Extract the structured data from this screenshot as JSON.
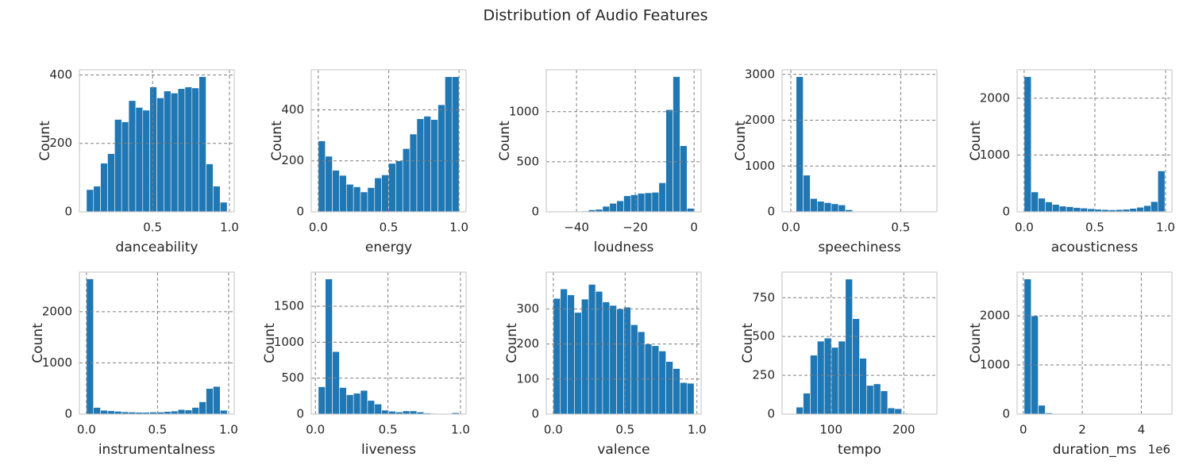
{
  "title": "Distribution of Audio Features",
  "chart_data": [
    {
      "type": "histogram",
      "xlabel": "danceability",
      "ylabel": "Count",
      "color": "#1f77b4",
      "grid": true,
      "bins": [
        0.07,
        0.1158,
        0.1615,
        0.2073,
        0.253,
        0.2988,
        0.3445,
        0.3903,
        0.436,
        0.4818,
        0.5275,
        0.5733,
        0.619,
        0.6648,
        0.7105,
        0.7563,
        0.802,
        0.8478,
        0.8935,
        0.9393,
        0.985
      ],
      "values": [
        65,
        75,
        142,
        170,
        270,
        263,
        325,
        305,
        297,
        365,
        333,
        353,
        347,
        360,
        365,
        362,
        395,
        140,
        75,
        28
      ],
      "xlim": [
        0.024,
        1.031
      ],
      "xticks": [
        0.5,
        {
          "value": 1,
          "label": "1.0"
        }
      ],
      "ylim": [
        0,
        415
      ],
      "yticks": [
        0,
        200,
        400
      ]
    },
    {
      "type": "histogram",
      "xlabel": "energy",
      "ylabel": "Count",
      "color": "#1f77b4",
      "grid": true,
      "bins": [
        0,
        0.05,
        0.1,
        0.15,
        0.2,
        0.25,
        0.3,
        0.35,
        0.4,
        0.45,
        0.5,
        0.55,
        0.6,
        0.65,
        0.7,
        0.75,
        0.8,
        0.85,
        0.9,
        0.95,
        1.0
      ],
      "values": [
        278,
        218,
        163,
        143,
        108,
        98,
        78,
        95,
        133,
        145,
        190,
        200,
        248,
        305,
        365,
        375,
        362,
        420,
        530,
        530
      ],
      "xlim": [
        -0.05,
        1.05
      ],
      "xticks": [
        {
          "value": 0,
          "label": "0.0"
        },
        0.5,
        {
          "value": 1,
          "label": "1.0"
        }
      ],
      "ylim": [
        0,
        557
      ],
      "yticks": [
        0,
        200,
        400
      ]
    },
    {
      "type": "histogram",
      "xlabel": "loudness",
      "ylabel": "Count",
      "color": "#1f77b4",
      "grid": true,
      "bins": [
        -47.9,
        -45.505,
        -43.11,
        -40.715,
        -38.32,
        -35.925,
        -33.53,
        -31.135,
        -28.74,
        -26.345,
        -23.95,
        -21.555,
        -19.16,
        -16.765,
        -14.37,
        -11.975,
        -9.58,
        -7.185,
        -4.79,
        -2.395,
        0
      ],
      "values": [
        1,
        1,
        2,
        3,
        8,
        20,
        25,
        55,
        85,
        110,
        160,
        170,
        185,
        190,
        195,
        290,
        1020,
        1350,
        660,
        35
      ],
      "xlim": [
        -50.295,
        2.395
      ],
      "xticks": [
        {
          "value": -40,
          "label": "−40"
        },
        {
          "value": -20,
          "label": "−20"
        },
        0
      ],
      "ylim": [
        0,
        1418
      ],
      "yticks": [
        0,
        500,
        1000
      ]
    },
    {
      "type": "histogram",
      "xlabel": "speechiness",
      "ylabel": "Count",
      "color": "#1f77b4",
      "grid": true,
      "bins": [
        0.024,
        0.0561,
        0.0881,
        0.1202,
        0.1522,
        0.1843,
        0.2163,
        0.2484,
        0.2804,
        0.3125,
        0.3445,
        0.3766,
        0.4086,
        0.4407,
        0.4727,
        0.5048,
        0.5368,
        0.5689,
        0.6009,
        0.633,
        0.665
      ],
      "values": [
        2950,
        800,
        290,
        230,
        200,
        175,
        150,
        45,
        12,
        6,
        4,
        3,
        2,
        2,
        1,
        1,
        1,
        1,
        0,
        1
      ],
      "xlim": [
        -0.04,
        0.665
      ],
      "xticks": [
        {
          "value": 0,
          "label": "0.0"
        },
        0.5
      ],
      "ylim": [
        0,
        3100
      ],
      "yticks": [
        0,
        1000,
        2000,
        3000
      ]
    },
    {
      "type": "histogram",
      "xlabel": "acousticness",
      "ylabel": "Count",
      "color": "#1f77b4",
      "grid": true,
      "bins": [
        0,
        0.0498,
        0.0995,
        0.1493,
        0.199,
        0.2488,
        0.2985,
        0.3483,
        0.398,
        0.4478,
        0.4975,
        0.5473,
        0.597,
        0.6468,
        0.6965,
        0.7463,
        0.796,
        0.8458,
        0.8955,
        0.9453,
        0.995
      ],
      "values": [
        2380,
        350,
        240,
        175,
        130,
        100,
        90,
        75,
        65,
        55,
        45,
        40,
        35,
        40,
        45,
        60,
        80,
        110,
        180,
        720
      ],
      "xlim": [
        -0.05,
        1.045
      ],
      "xticks": [
        {
          "value": 0,
          "label": "0.0"
        },
        0.5,
        {
          "value": 1,
          "label": "1.0"
        }
      ],
      "ylim": [
        0,
        2500
      ],
      "yticks": [
        0,
        1000,
        2000
      ]
    },
    {
      "type": "histogram",
      "xlabel": "instrumentalness",
      "ylabel": "Count",
      "color": "#1f77b4",
      "grid": true,
      "bins": [
        0,
        0.0495,
        0.099,
        0.1485,
        0.198,
        0.2475,
        0.297,
        0.3465,
        0.396,
        0.4455,
        0.495,
        0.5445,
        0.594,
        0.6435,
        0.693,
        0.7425,
        0.792,
        0.8415,
        0.891,
        0.9405,
        0.99
      ],
      "values": [
        2640,
        130,
        75,
        65,
        55,
        45,
        40,
        35,
        35,
        40,
        40,
        50,
        60,
        90,
        80,
        130,
        240,
        500,
        540,
        75
      ],
      "xlim": [
        -0.0495,
        1.0395
      ],
      "xticks": [
        {
          "value": 0,
          "label": "0.0"
        },
        0.5,
        {
          "value": 1,
          "label": "1.0"
        }
      ],
      "ylim": [
        0,
        2772
      ],
      "yticks": [
        0,
        1000,
        2000
      ]
    },
    {
      "type": "histogram",
      "xlabel": "liveness",
      "ylabel": "Count",
      "color": "#1f77b4",
      "grid": true,
      "bins": [
        0.02,
        0.0685,
        0.117,
        0.1655,
        0.214,
        0.2625,
        0.311,
        0.3595,
        0.408,
        0.4565,
        0.505,
        0.5535,
        0.602,
        0.6505,
        0.699,
        0.7475,
        0.796,
        0.8445,
        0.893,
        0.9415,
        0.99
      ],
      "values": [
        380,
        1880,
        870,
        370,
        270,
        290,
        330,
        190,
        140,
        55,
        40,
        30,
        45,
        45,
        30,
        15,
        10,
        8,
        5,
        20
      ],
      "xlim": [
        -0.0285,
        1.0385
      ],
      "xticks": [
        {
          "value": 0,
          "label": "0.0"
        },
        0.5,
        {
          "value": 1,
          "label": "1.0"
        }
      ],
      "ylim": [
        0,
        1975
      ],
      "yticks": [
        0,
        500,
        1000,
        1500
      ]
    },
    {
      "type": "histogram",
      "xlabel": "valence",
      "ylabel": "Count",
      "color": "#1f77b4",
      "grid": true,
      "bins": [
        0,
        0.049,
        0.098,
        0.147,
        0.196,
        0.245,
        0.294,
        0.343,
        0.392,
        0.441,
        0.49,
        0.539,
        0.588,
        0.637,
        0.686,
        0.735,
        0.784,
        0.833,
        0.882,
        0.931,
        0.98
      ],
      "values": [
        330,
        357,
        340,
        290,
        328,
        370,
        350,
        320,
        310,
        300,
        305,
        255,
        235,
        200,
        195,
        180,
        150,
        130,
        90,
        88
      ],
      "xlim": [
        -0.049,
        1.029
      ],
      "xticks": [
        {
          "value": 0,
          "label": "0.0"
        },
        0.5,
        {
          "value": 1,
          "label": "1.0"
        }
      ],
      "ylim": [
        0,
        405
      ],
      "yticks": [
        0,
        100,
        200,
        300
      ]
    },
    {
      "type": "histogram",
      "xlabel": "tempo",
      "ylabel": "Count",
      "color": "#1f77b4",
      "grid": true,
      "bins": [
        42.3,
        51.98,
        61.66,
        71.34,
        81.02,
        90.7,
        100.38,
        110.06,
        119.74,
        129.42,
        139.1,
        148.78,
        158.46,
        168.14,
        177.82,
        187.5,
        197.18,
        206.86,
        216.54,
        226.22,
        235.9
      ],
      "values": [
        2,
        45,
        135,
        380,
        470,
        490,
        430,
        470,
        870,
        615,
        360,
        185,
        195,
        150,
        40,
        35,
        5,
        2,
        1,
        1
      ],
      "xlim": [
        32.62,
        245.58
      ],
      "xticks": [
        100,
        200
      ],
      "ylim": [
        0,
        915
      ],
      "yticks": [
        0,
        250,
        500,
        750
      ]
    },
    {
      "type": "histogram",
      "xlabel": "duration_ms",
      "ylabel": "Count",
      "color": "#1f77b4",
      "grid": true,
      "x_offset_label": "1e6",
      "bins": [
        30000,
        268500,
        507000,
        745500,
        984000,
        1222500,
        1461000,
        1699500,
        1938000,
        2176500,
        2415000,
        2653500,
        2892000,
        3130500,
        3369000,
        3607500,
        3846000,
        4084500,
        4323000,
        4561500,
        4800000
      ],
      "values": [
        2750,
        2000,
        180,
        25,
        8,
        4,
        2,
        1,
        1,
        0,
        0,
        1,
        0,
        0,
        0,
        0,
        0,
        0,
        0,
        1
      ],
      "xlim": [
        -208500,
        5038500
      ],
      "xticks": [
        0,
        {
          "value": 2000000,
          "label": "2"
        },
        {
          "value": 4000000,
          "label": "4"
        }
      ],
      "ylim": [
        0,
        2890
      ],
      "yticks": [
        0,
        1000,
        2000
      ]
    }
  ]
}
